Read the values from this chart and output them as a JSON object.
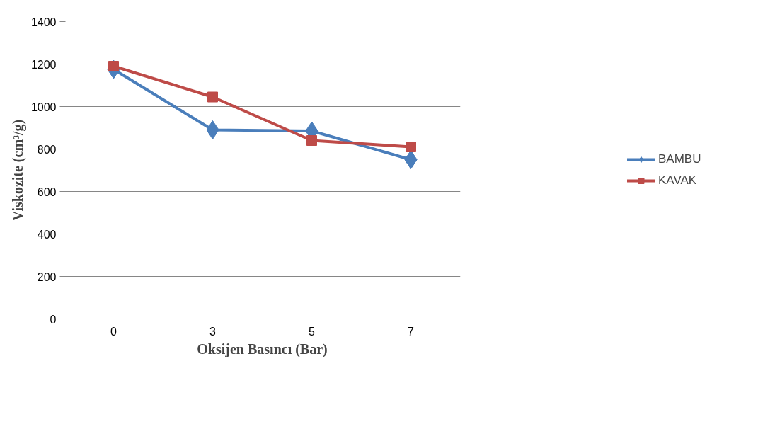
{
  "chart_data": {
    "type": "line",
    "xlabel": "Oksijen Basıncı (Bar)",
    "ylabel": "Viskozite (cm³/g)",
    "categories": [
      "0",
      "3",
      "5",
      "7"
    ],
    "series": [
      {
        "name": "BAMBU",
        "color": "#4a7ebb",
        "values": [
          1175,
          890,
          885,
          750
        ],
        "marker": "diamond"
      },
      {
        "name": "KAVAK",
        "color": "#be4b48",
        "values": [
          1190,
          1045,
          840,
          810
        ],
        "marker": "square"
      }
    ],
    "ylim": [
      0,
      1400
    ],
    "yticks": [
      0,
      200,
      400,
      600,
      800,
      1000,
      1200,
      1400
    ],
    "grid": "y",
    "legend": "right",
    "line_style": "solid"
  }
}
